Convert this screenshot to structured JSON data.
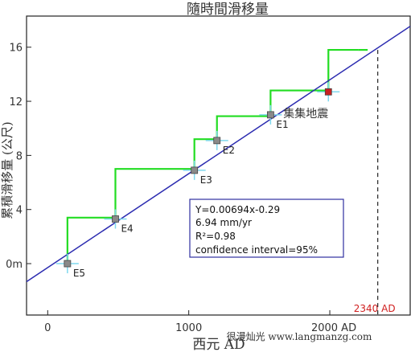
{
  "chart_data": {
    "type": "line",
    "title": "隨時間滑移量",
    "xlabel": "西元 AD",
    "ylabel": "累積滑移量 (公尺)",
    "xlim": [
      -150,
      2570
    ],
    "ylim": [
      -3.8,
      18.3
    ],
    "x_ticks": [
      0,
      1000,
      2000
    ],
    "x_tick_labels": [
      "0",
      "1000",
      "2000 AD"
    ],
    "y_ticks": [
      0,
      4,
      8,
      12,
      16
    ],
    "y_tick_labels": [
      "0m",
      "4",
      "8",
      "12",
      "16"
    ],
    "regression": {
      "slope": 0.00694,
      "intercept": -0.29,
      "x_range": [
        -150,
        2570
      ],
      "color": "#2b2bb0"
    },
    "events": [
      {
        "label": "E5",
        "x": 140,
        "y": 0
      },
      {
        "label": "E4",
        "x": 480,
        "y": 3.3
      },
      {
        "label": "E3",
        "x": 1040,
        "y": 6.9
      },
      {
        "label": "E2",
        "x": 1200,
        "y": 9.1
      },
      {
        "label": "E1",
        "x": 1580,
        "y": 11
      },
      {
        "label": "",
        "x": 1990,
        "y": 12.7,
        "highlight": true
      }
    ],
    "step_series": {
      "color": "#22dd22",
      "points": [
        [
          140,
          0
        ],
        [
          140,
          3.4
        ],
        [
          480,
          3.4
        ],
        [
          480,
          7.0
        ],
        [
          1040,
          7.0
        ],
        [
          1040,
          9.2
        ],
        [
          1200,
          9.2
        ],
        [
          1200,
          10.9
        ],
        [
          1580,
          10.9
        ],
        [
          1580,
          12.8
        ],
        [
          1990,
          12.8
        ],
        [
          1990,
          15.8
        ],
        [
          2200,
          15.8
        ]
      ],
      "dashed_tail": [
        [
          2200,
          15.8
        ],
        [
          2300,
          15.8
        ]
      ]
    },
    "future_event": {
      "x": 2340,
      "label": "2340 AD",
      "y_top": 15.8,
      "color": "#d02020"
    },
    "annotation": {
      "text": "集集地震",
      "x": 1830,
      "y": 10.8
    },
    "stats_box": {
      "lines": [
        "Y=0.00694x-0.29",
        "6.94 mm/yr",
        "R²=0.98",
        "confidence interval=95%"
      ]
    }
  },
  "watermark": "很漫灿光 www.langmanzg.com"
}
